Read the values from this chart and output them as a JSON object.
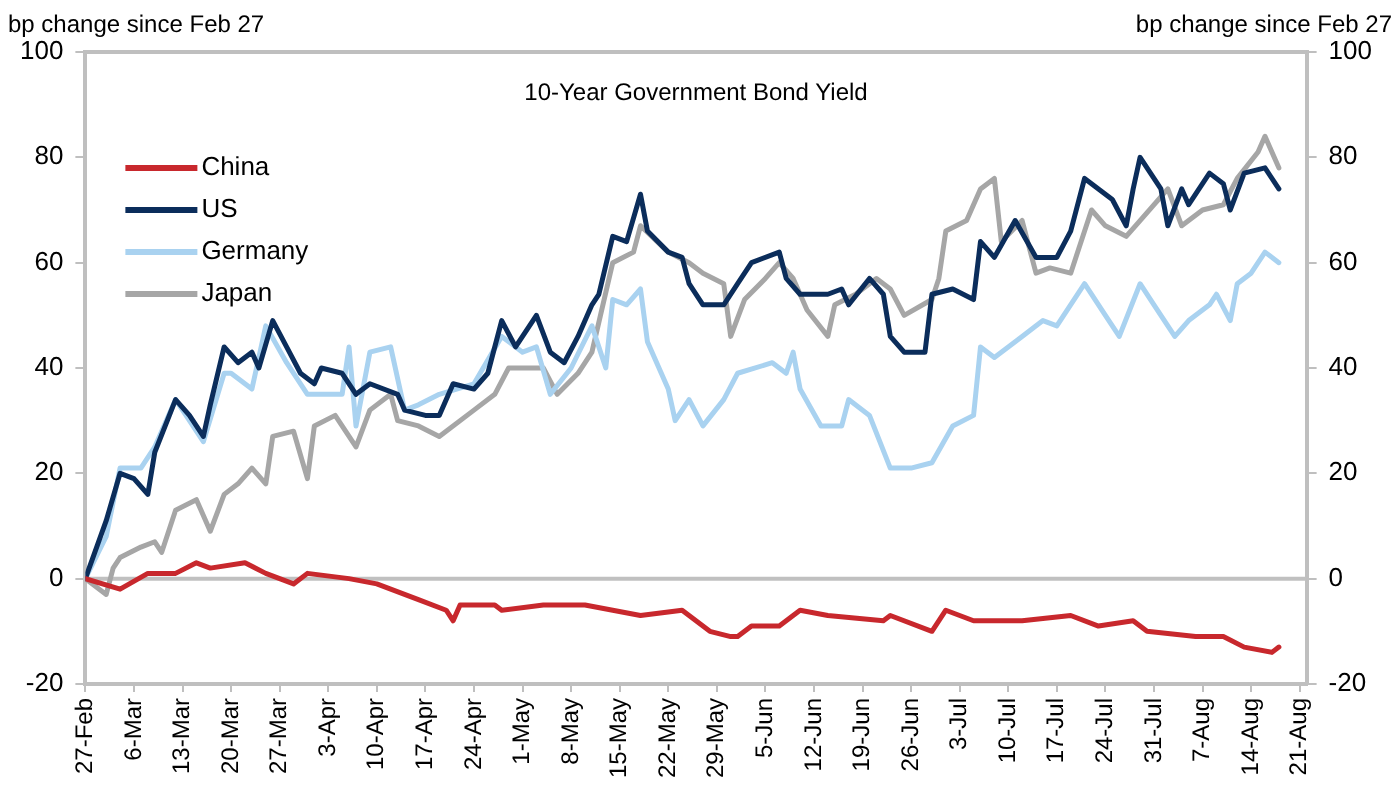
{
  "chart_data": {
    "type": "line",
    "title": "10-Year Government Bond Yield",
    "ylabel": "bp change since Feb 27",
    "y2label": "bp change since Feb 27",
    "xlim": [
      "--02-27",
      "--08-22"
    ],
    "xticks": [
      {
        "value": "--02-27",
        "label": "27-Feb"
      },
      {
        "value": "--03-06",
        "label": "6-Mar"
      },
      {
        "value": "--03-13",
        "label": "13-Mar"
      },
      {
        "value": "--03-20",
        "label": "20-Mar"
      },
      {
        "value": "--03-27",
        "label": "27-Mar"
      },
      {
        "value": "--04-03",
        "label": "3-Apr"
      },
      {
        "value": "--04-10",
        "label": "10-Apr"
      },
      {
        "value": "--04-17",
        "label": "17-Apr"
      },
      {
        "value": "--04-24",
        "label": "24-Apr"
      },
      {
        "value": "--05-01",
        "label": "1-May"
      },
      {
        "value": "--05-08",
        "label": "8-May"
      },
      {
        "value": "--05-15",
        "label": "15-May"
      },
      {
        "value": "--05-22",
        "label": "22-May"
      },
      {
        "value": "--05-29",
        "label": "29-May"
      },
      {
        "value": "--06-05",
        "label": "5-Jun"
      },
      {
        "value": "--06-12",
        "label": "12-Jun"
      },
      {
        "value": "--06-19",
        "label": "19-Jun"
      },
      {
        "value": "--06-26",
        "label": "26-Jun"
      },
      {
        "value": "--07-03",
        "label": "3-Jul"
      },
      {
        "value": "--07-10",
        "label": "10-Jul"
      },
      {
        "value": "--07-17",
        "label": "17-Jul"
      },
      {
        "value": "--07-24",
        "label": "24-Jul"
      },
      {
        "value": "--07-31",
        "label": "31-Jul"
      },
      {
        "value": "--08-07",
        "label": "7-Aug"
      },
      {
        "value": "--08-14",
        "label": "14-Aug"
      },
      {
        "value": "--08-21",
        "label": "21-Aug"
      }
    ],
    "ylim": [
      -20,
      100
    ],
    "yticks": [
      -20,
      0,
      20,
      40,
      60,
      80,
      100
    ],
    "y2lim": [
      -20,
      100
    ],
    "y2ticks": [
      -20,
      0,
      20,
      40,
      60,
      80,
      100
    ],
    "ref_lines": [
      {
        "axis": "y",
        "value": 0,
        "color": "#c0c0c0"
      }
    ],
    "legend": "top left",
    "marker": "none",
    "line_style": "solid",
    "series": [
      {
        "name": "China",
        "color": "#c8282d",
        "x": [
          "--02-27",
          "--03-04",
          "--03-08",
          "--03-12",
          "--03-15",
          "--03-17",
          "--03-22",
          "--03-25",
          "--03-29",
          "--03-31",
          "--04-06",
          "--04-10",
          "--04-16",
          "--04-20",
          "--04-21",
          "--04-22",
          "--04-27",
          "--04-28",
          "--05-04",
          "--05-10",
          "--05-14",
          "--05-18",
          "--05-24",
          "--05-28",
          "--05-31",
          "--06-01",
          "--06-03",
          "--06-07",
          "--06-10",
          "--06-14",
          "--06-22",
          "--06-23",
          "--06-29",
          "--07-01",
          "--07-05",
          "--07-12",
          "--07-19",
          "--07-23",
          "--07-28",
          "--07-30",
          "--08-06",
          "--08-10",
          "--08-13",
          "--08-17",
          "--08-18"
        ],
        "values": [
          0,
          -2,
          1,
          1,
          3,
          2,
          3,
          1,
          -1,
          1,
          0,
          -1,
          -4,
          -6,
          -8,
          -5,
          -5,
          -6,
          -5,
          -5,
          -6,
          -7,
          -6,
          -10,
          -11,
          -11,
          -9,
          -9,
          -6,
          -7,
          -8,
          -7,
          -10,
          -6,
          -8,
          -8,
          -7,
          -9,
          -8,
          -10,
          -11,
          -11,
          -13,
          -14,
          -13
        ]
      },
      {
        "name": "US",
        "color": "#0b2d5b",
        "x": [
          "--02-27",
          "--03-02",
          "--03-04",
          "--03-06",
          "--03-08",
          "--03-09",
          "--03-12",
          "--03-14",
          "--03-16",
          "--03-17",
          "--03-19",
          "--03-21",
          "--03-23",
          "--03-24",
          "--03-26",
          "--03-28",
          "--03-30",
          "--04-01",
          "--04-02",
          "--04-05",
          "--04-07",
          "--04-09",
          "--04-13",
          "--04-14",
          "--04-17",
          "--04-19",
          "--04-21",
          "--04-24",
          "--04-26",
          "--04-28",
          "--04-30",
          "--05-03",
          "--05-05",
          "--05-07",
          "--05-09",
          "--05-11",
          "--05-12",
          "--05-14",
          "--05-16",
          "--05-18",
          "--05-19",
          "--05-22",
          "--05-24",
          "--05-25",
          "--05-27",
          "--05-30",
          "--06-01",
          "--06-03",
          "--06-07",
          "--06-08",
          "--06-10",
          "--06-14",
          "--06-16",
          "--06-17",
          "--06-20",
          "--06-22",
          "--06-23",
          "--06-25",
          "--06-28",
          "--06-29",
          "--07-02",
          "--07-05",
          "--07-06",
          "--07-08",
          "--07-11",
          "--07-14",
          "--07-17",
          "--07-19",
          "--07-21",
          "--07-25",
          "--07-27",
          "--07-28",
          "--07-29",
          "--08-01",
          "--08-02",
          "--08-04",
          "--08-05",
          "--08-08",
          "--08-10",
          "--08-11",
          "--08-13",
          "--08-16",
          "--08-18"
        ],
        "values": [
          0,
          11,
          20,
          19,
          16,
          24,
          34,
          31,
          27,
          33,
          44,
          41,
          43,
          40,
          49,
          44,
          39,
          37,
          40,
          39,
          35,
          37,
          35,
          32,
          31,
          31,
          37,
          36,
          39,
          49,
          44,
          50,
          43,
          41,
          46,
          52,
          54,
          65,
          64,
          73,
          66,
          62,
          61,
          56,
          52,
          52,
          56,
          60,
          62,
          57,
          54,
          54,
          55,
          52,
          57,
          54,
          46,
          43,
          43,
          54,
          55,
          53,
          64,
          61,
          68,
          61,
          61,
          66,
          76,
          72,
          67,
          74,
          80,
          74,
          67,
          74,
          71,
          77,
          75,
          70,
          77,
          78,
          74
        ]
      },
      {
        "name": "Germany",
        "color": "#a9d2f0",
        "x": [
          "--02-27",
          "--03-02",
          "--03-04",
          "--03-07",
          "--03-09",
          "--03-12",
          "--03-16",
          "--03-19",
          "--03-20",
          "--03-23",
          "--03-25",
          "--03-28",
          "--03-31",
          "--04-05",
          "--04-06",
          "--04-07",
          "--04-09",
          "--04-12",
          "--04-14",
          "--04-16",
          "--04-19",
          "--04-24",
          "--04-28",
          "--05-01",
          "--05-03",
          "--05-05",
          "--05-08",
          "--05-11",
          "--05-13",
          "--05-14",
          "--05-16",
          "--05-18",
          "--05-19",
          "--05-22",
          "--05-23",
          "--05-25",
          "--05-27",
          "--05-30",
          "--06-01",
          "--06-06",
          "--06-08",
          "--06-09",
          "--06-10",
          "--06-13",
          "--06-16",
          "--06-17",
          "--06-20",
          "--06-23",
          "--06-26",
          "--06-29",
          "--07-02",
          "--07-05",
          "--07-06",
          "--07-08",
          "--07-12",
          "--07-15",
          "--07-17",
          "--07-21",
          "--07-24",
          "--07-26",
          "--07-29",
          "--07-31",
          "--08-03",
          "--08-05",
          "--08-08",
          "--08-09",
          "--08-11",
          "--08-12",
          "--08-14",
          "--08-16",
          "--08-18"
        ],
        "values": [
          0,
          8,
          21,
          21,
          25,
          34,
          26,
          39,
          39,
          36,
          48,
          41,
          35,
          35,
          44,
          29,
          43,
          44,
          32,
          33,
          35,
          37,
          46,
          43,
          44,
          35,
          40,
          48,
          40,
          53,
          52,
          55,
          45,
          36,
          30,
          34,
          29,
          34,
          39,
          41,
          39,
          43,
          36,
          29,
          29,
          34,
          31,
          21,
          21,
          22,
          29,
          31,
          44,
          42,
          46,
          49,
          48,
          56,
          50,
          46,
          56,
          52,
          46,
          49,
          52,
          54,
          49,
          56,
          58,
          62,
          60
        ]
      },
      {
        "name": "Japan",
        "color": "#a6a6a6",
        "x": [
          "--02-27",
          "--03-02",
          "--03-03",
          "--03-04",
          "--03-07",
          "--03-09",
          "--03-10",
          "--03-12",
          "--03-15",
          "--03-17",
          "--03-19",
          "--03-21",
          "--03-23",
          "--03-25",
          "--03-26",
          "--03-29",
          "--03-31",
          "--04-01",
          "--04-04",
          "--04-07",
          "--04-09",
          "--04-12",
          "--04-13",
          "--04-16",
          "--04-19",
          "--04-24",
          "--04-27",
          "--04-29",
          "--05-04",
          "--05-06",
          "--05-09",
          "--05-11",
          "--05-14",
          "--05-17",
          "--05-18",
          "--05-22",
          "--05-25",
          "--05-27",
          "--05-30",
          "--05-31",
          "--06-02",
          "--06-05",
          "--06-07",
          "--06-09",
          "--06-11",
          "--06-14",
          "--06-15",
          "--06-18",
          "--06-21",
          "--06-23",
          "--06-25",
          "--06-29",
          "--06-30",
          "--07-01",
          "--07-04",
          "--07-06",
          "--07-08",
          "--07-09",
          "--07-12",
          "--07-14",
          "--07-16",
          "--07-19",
          "--07-22",
          "--07-24",
          "--07-27",
          "--07-29",
          "--08-02",
          "--08-04",
          "--08-07",
          "--08-10",
          "--08-12",
          "--08-15",
          "--08-16",
          "--08-18"
        ],
        "values": [
          0,
          -3,
          2,
          4,
          6,
          7,
          5,
          13,
          15,
          9,
          16,
          18,
          21,
          18,
          27,
          28,
          19,
          29,
          31,
          25,
          32,
          35,
          30,
          29,
          27,
          32,
          35,
          40,
          40,
          35,
          39,
          43,
          60,
          62,
          67,
          62,
          60,
          58,
          56,
          46,
          53,
          57,
          60,
          57,
          51,
          46,
          52,
          54,
          57,
          55,
          50,
          53,
          57,
          66,
          68,
          74,
          76,
          64,
          68,
          58,
          59,
          58,
          70,
          67,
          65,
          68,
          74,
          67,
          70,
          71,
          76,
          81,
          84,
          78
        ]
      }
    ]
  }
}
